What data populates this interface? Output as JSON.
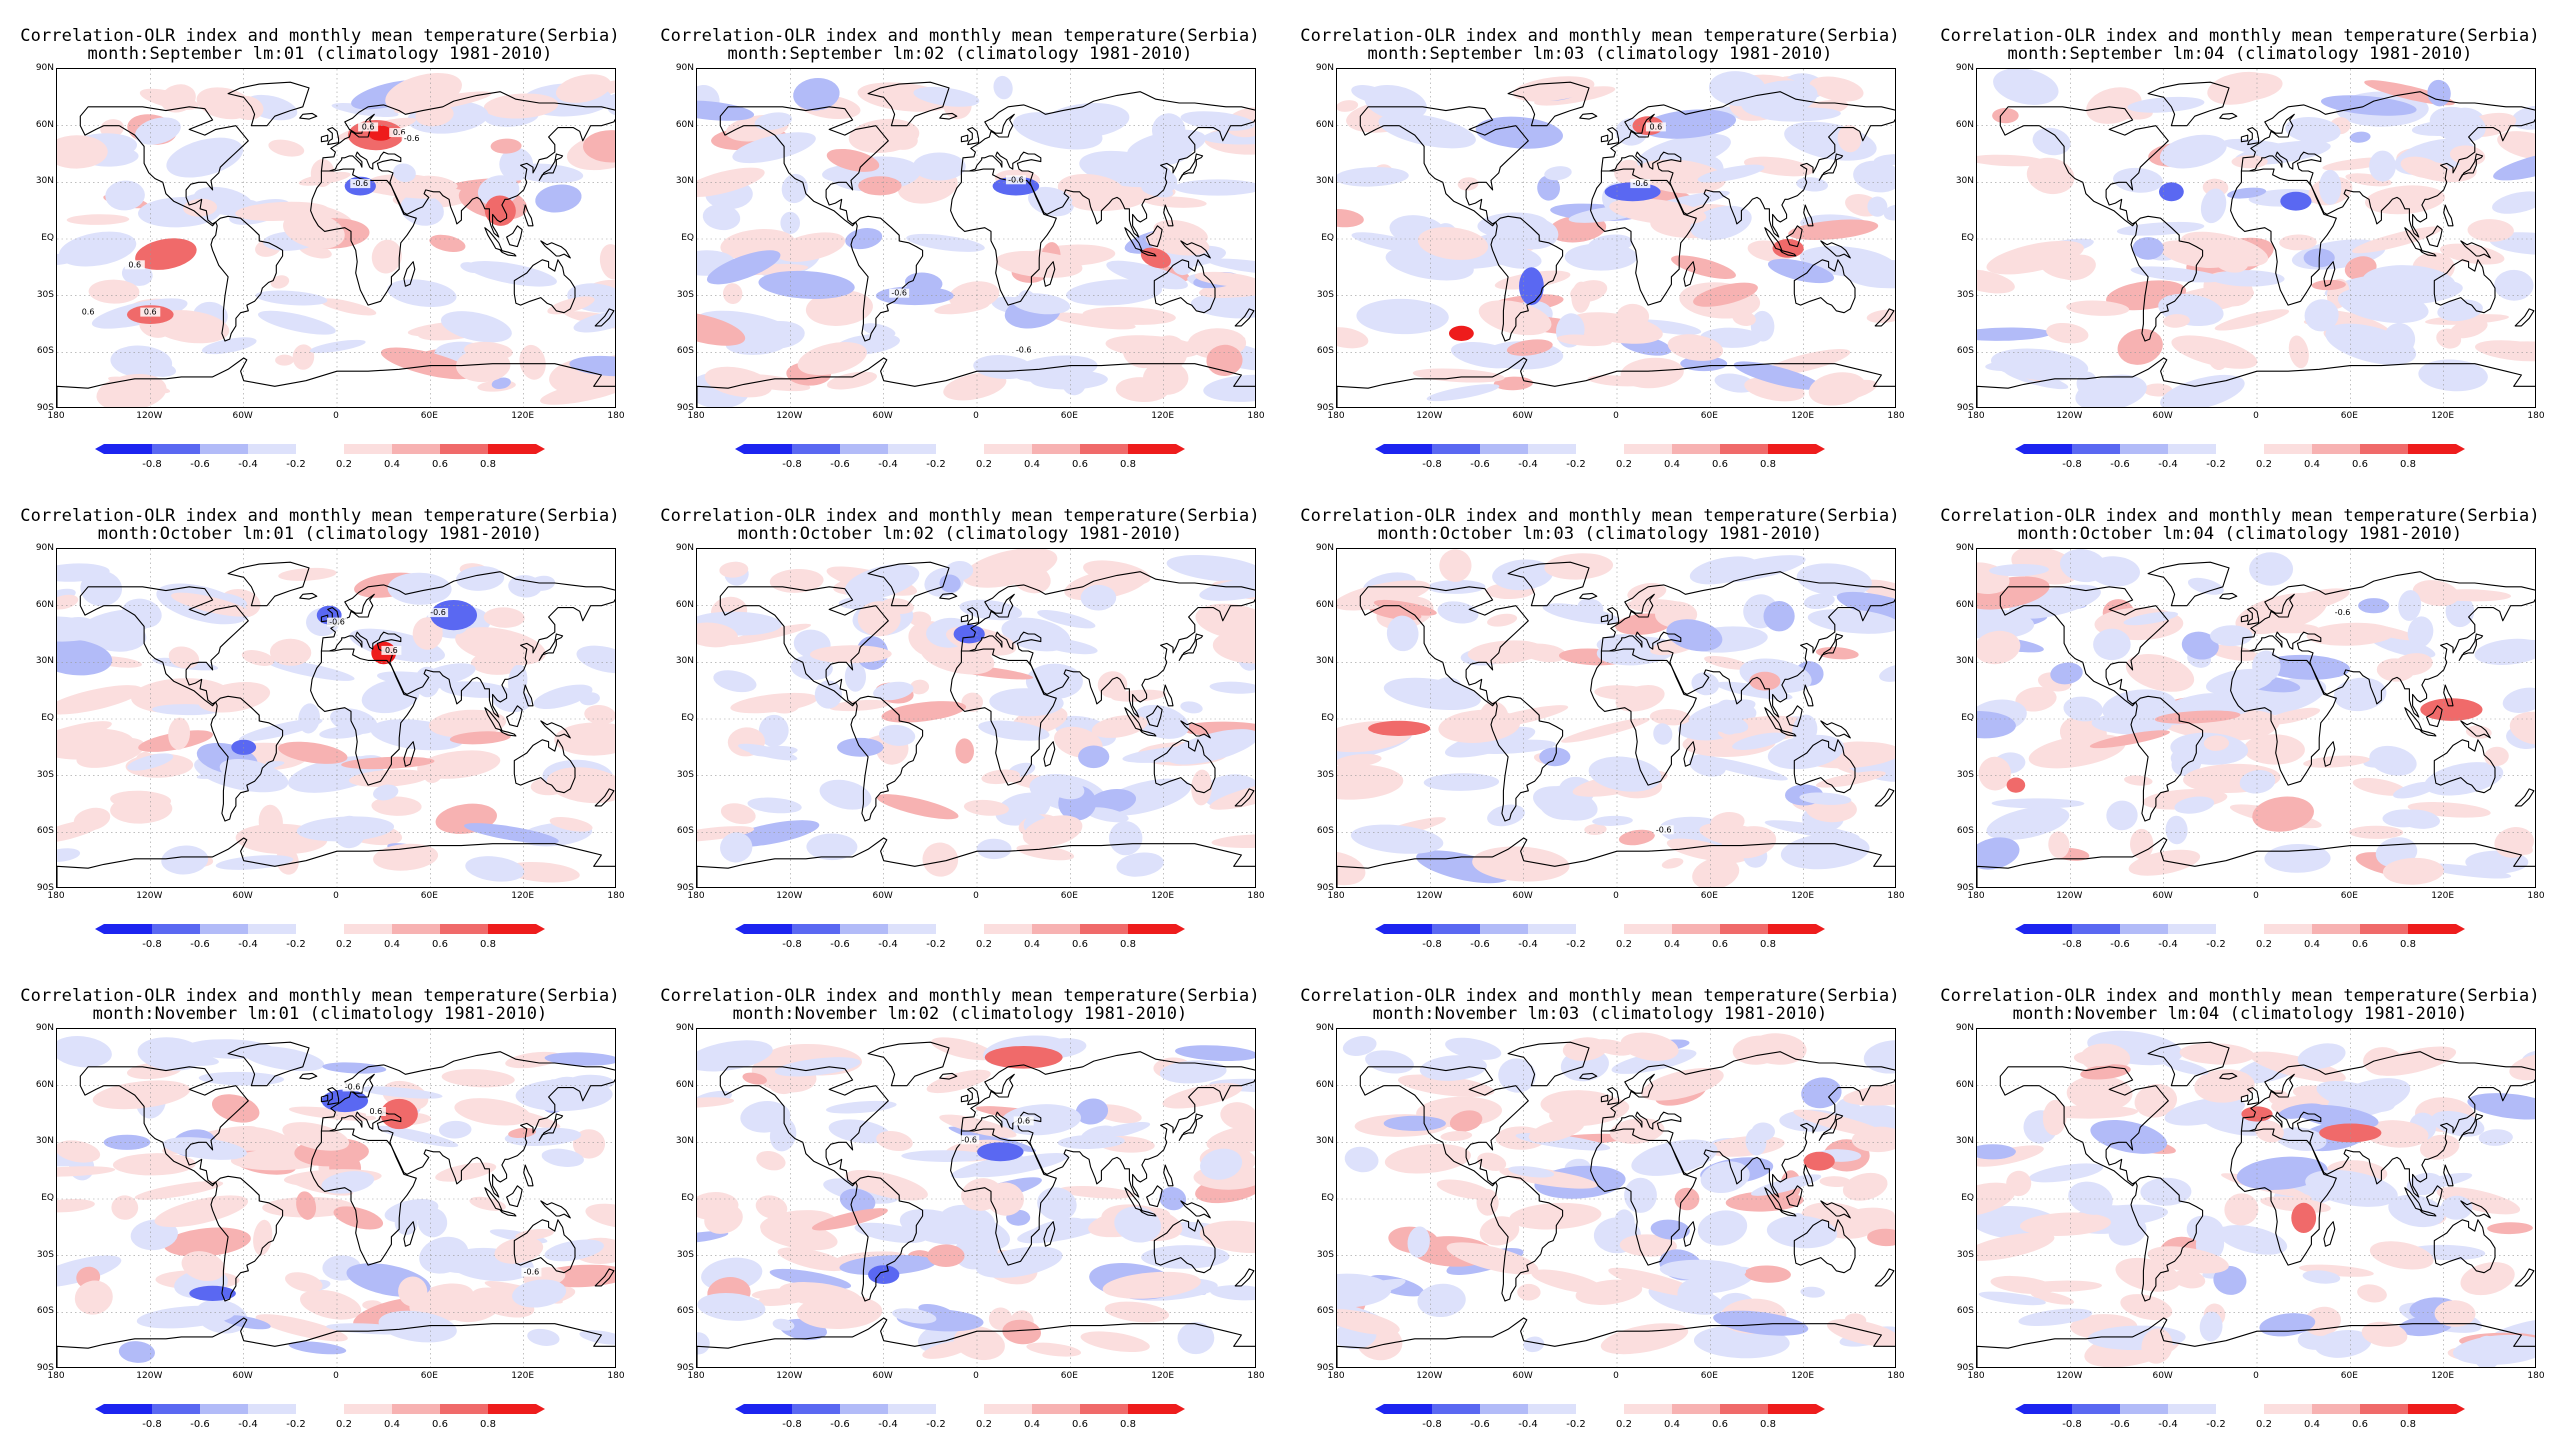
{
  "colors": {
    "blue_dark": "#1c24f0",
    "blue_mid": "#5a68f2",
    "blue_light": "#b2bbf8",
    "blue_pale": "#dde1fb",
    "red_pale": "#fbdede",
    "red_light": "#f7b2b2",
    "red_mid": "#f06a6a",
    "red_dark": "#ee1c1c",
    "coast": "#000000"
  },
  "lat_labels": [
    "90N",
    "60N",
    "30N",
    "EQ",
    "30S",
    "60S",
    "90S"
  ],
  "lon_labels": [
    "180",
    "120W",
    "60W",
    "0",
    "60E",
    "120E",
    "180"
  ],
  "colorbar_labels": [
    "-0.8",
    "-0.6",
    "-0.4",
    "-0.2",
    "0.2",
    "0.4",
    "0.6",
    "0.8"
  ],
  "panels": [
    {
      "title1": "Correlation-OLR index and monthly mean temperature(Serbia)",
      "title2": "month:September lm:01 (climatology 1981-2010)",
      "contour_labels": [
        {
          "text": "0.6"
        },
        {
          "text": "-0.6"
        },
        {
          "text": "0.6"
        },
        {
          "text": "-0.6"
        },
        {
          "text": "0.6"
        },
        {
          "text": "0.6"
        },
        {
          "text": "0.6"
        }
      ]
    },
    {
      "title1": "Correlation-OLR index and monthly mean temperature(Serbia)",
      "title2": "month:September lm:02 (climatology 1981-2010)",
      "contour_labels": [
        {
          "text": "-0.6"
        },
        {
          "text": "-0.6"
        },
        {
          "text": "-0.6"
        }
      ]
    },
    {
      "title1": "Correlation-OLR index and monthly mean temperature(Serbia)",
      "title2": "month:September lm:03 (climatology 1981-2010)",
      "contour_labels": [
        {
          "text": "0.6"
        },
        {
          "text": "-0.6"
        }
      ]
    },
    {
      "title1": "Correlation-OLR index and monthly mean temperature(Serbia)",
      "title2": "month:September lm:04 (climatology 1981-2010)",
      "contour_labels": []
    },
    {
      "title1": "Correlation-OLR index and monthly mean temperature(Serbia)",
      "title2": "month:October lm:01 (climatology 1981-2010)",
      "contour_labels": [
        {
          "text": "-0.6"
        },
        {
          "text": "0.6"
        },
        {
          "text": "-0.6"
        }
      ]
    },
    {
      "title1": "Correlation-OLR index and monthly mean temperature(Serbia)",
      "title2": "month:October lm:02 (climatology 1981-2010)",
      "contour_labels": []
    },
    {
      "title1": "Correlation-OLR index and monthly mean temperature(Serbia)",
      "title2": "month:October lm:03 (climatology 1981-2010)",
      "contour_labels": [
        {
          "text": "-0.6"
        }
      ]
    },
    {
      "title1": "Correlation-OLR index and monthly mean temperature(Serbia)",
      "title2": "month:October lm:04 (climatology 1981-2010)",
      "contour_labels": [
        {
          "text": "-0.6"
        }
      ]
    },
    {
      "title1": "Correlation-OLR index and monthly mean temperature(Serbia)",
      "title2": "month:November lm:01 (climatology 1981-2010)",
      "contour_labels": [
        {
          "text": "-0.6"
        },
        {
          "text": "0.6"
        },
        {
          "text": "-0.6"
        }
      ]
    },
    {
      "title1": "Correlation-OLR index and monthly mean temperature(Serbia)",
      "title2": "month:November lm:02 (climatology 1981-2010)",
      "contour_labels": [
        {
          "text": "-0.6"
        },
        {
          "text": "0.6"
        }
      ]
    },
    {
      "title1": "Correlation-OLR index and monthly mean temperature(Serbia)",
      "title2": "month:November lm:03 (climatology 1981-2010)",
      "contour_labels": []
    },
    {
      "title1": "Correlation-OLR index and monthly mean temperature(Serbia)",
      "title2": "month:November lm:04 (climatology 1981-2010)",
      "contour_labels": []
    }
  ]
}
